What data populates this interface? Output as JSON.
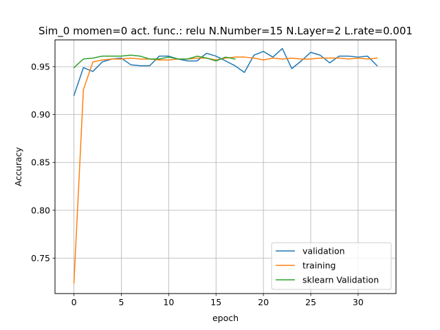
{
  "chart_data": {
    "type": "line",
    "title": "Sim_0 momen=0 act. func.: relu N.Number=15 N.Layer=2 L.rate=0.001",
    "xlabel": "epoch",
    "ylabel": "Accuracy",
    "xlim": [
      -2.0,
      34.0
    ],
    "ylim": [
      0.713,
      0.978
    ],
    "xticks": [
      0,
      5,
      10,
      15,
      20,
      25,
      30
    ],
    "yticks": [
      0.75,
      0.8,
      0.85,
      0.9,
      0.95
    ],
    "ytick_labels": [
      "0.75",
      "0.80",
      "0.85",
      "0.90",
      "0.95"
    ],
    "grid": true,
    "legend_position": "lower right",
    "series": [
      {
        "name": "validation",
        "color": "#1f77b4",
        "x": [
          0,
          1,
          2,
          3,
          4,
          5,
          6,
          7,
          8,
          9,
          10,
          11,
          12,
          13,
          14,
          15,
          16,
          17,
          18,
          19,
          20,
          21,
          22,
          23,
          24,
          25,
          26,
          27,
          28,
          29,
          30,
          31,
          32
        ],
        "values": [
          0.92,
          0.949,
          0.945,
          0.955,
          0.958,
          0.959,
          0.952,
          0.951,
          0.951,
          0.961,
          0.961,
          0.958,
          0.956,
          0.956,
          0.964,
          0.961,
          0.956,
          0.951,
          0.944,
          0.962,
          0.966,
          0.96,
          0.969,
          0.948,
          0.956,
          0.965,
          0.962,
          0.954,
          0.961,
          0.961,
          0.96,
          0.961,
          0.951
        ]
      },
      {
        "name": "training",
        "color": "#ff7f0e",
        "x": [
          0,
          1,
          2,
          3,
          4,
          5,
          6,
          7,
          8,
          9,
          10,
          11,
          12,
          13,
          14,
          15,
          16,
          17,
          18,
          19,
          20,
          21,
          22,
          23,
          24,
          25,
          26,
          27,
          28,
          29,
          30,
          31,
          32
        ],
        "values": [
          0.724,
          0.926,
          0.955,
          0.957,
          0.958,
          0.958,
          0.959,
          0.958,
          0.958,
          0.957,
          0.957,
          0.958,
          0.958,
          0.959,
          0.959,
          0.957,
          0.959,
          0.96,
          0.96,
          0.959,
          0.957,
          0.959,
          0.958,
          0.959,
          0.958,
          0.958,
          0.959,
          0.959,
          0.959,
          0.958,
          0.959,
          0.958,
          0.959
        ]
      },
      {
        "name": "sklearn Validation",
        "color": "#2ca02c",
        "x": [
          0,
          1,
          2,
          3,
          4,
          5,
          6,
          7,
          8,
          9,
          10,
          11,
          12,
          13,
          14,
          15,
          16,
          17
        ],
        "values": [
          0.949,
          0.958,
          0.959,
          0.961,
          0.961,
          0.961,
          0.962,
          0.961,
          0.958,
          0.958,
          0.96,
          0.958,
          0.958,
          0.961,
          0.959,
          0.956,
          0.96,
          0.958
        ]
      }
    ]
  }
}
